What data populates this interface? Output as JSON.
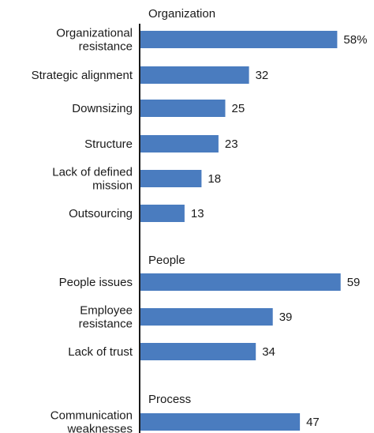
{
  "chart_data": {
    "type": "bar",
    "orientation": "horizontal",
    "bar_color": "#4a7cbf",
    "value_suffix_first": "%",
    "groups": [
      {
        "name": "Organization",
        "items": [
          {
            "label": [
              "Organizational",
              "resistance"
            ],
            "value": 58
          },
          {
            "label": [
              "Strategic alignment"
            ],
            "value": 32
          },
          {
            "label": [
              "Downsizing"
            ],
            "value": 25
          },
          {
            "label": [
              "Structure"
            ],
            "value": 23
          },
          {
            "label": [
              "Lack of defined",
              "mission"
            ],
            "value": 18
          },
          {
            "label": [
              "Outsourcing"
            ],
            "value": 13
          }
        ]
      },
      {
        "name": "People",
        "items": [
          {
            "label": [
              "People issues"
            ],
            "value": 59
          },
          {
            "label": [
              "Employee",
              "resistance"
            ],
            "value": 39
          },
          {
            "label": [
              "Lack of trust"
            ],
            "value": 34
          }
        ]
      },
      {
        "name": "Process",
        "items": [
          {
            "label": [
              "Communication",
              "weaknesses"
            ],
            "value": 47
          }
        ]
      }
    ]
  }
}
